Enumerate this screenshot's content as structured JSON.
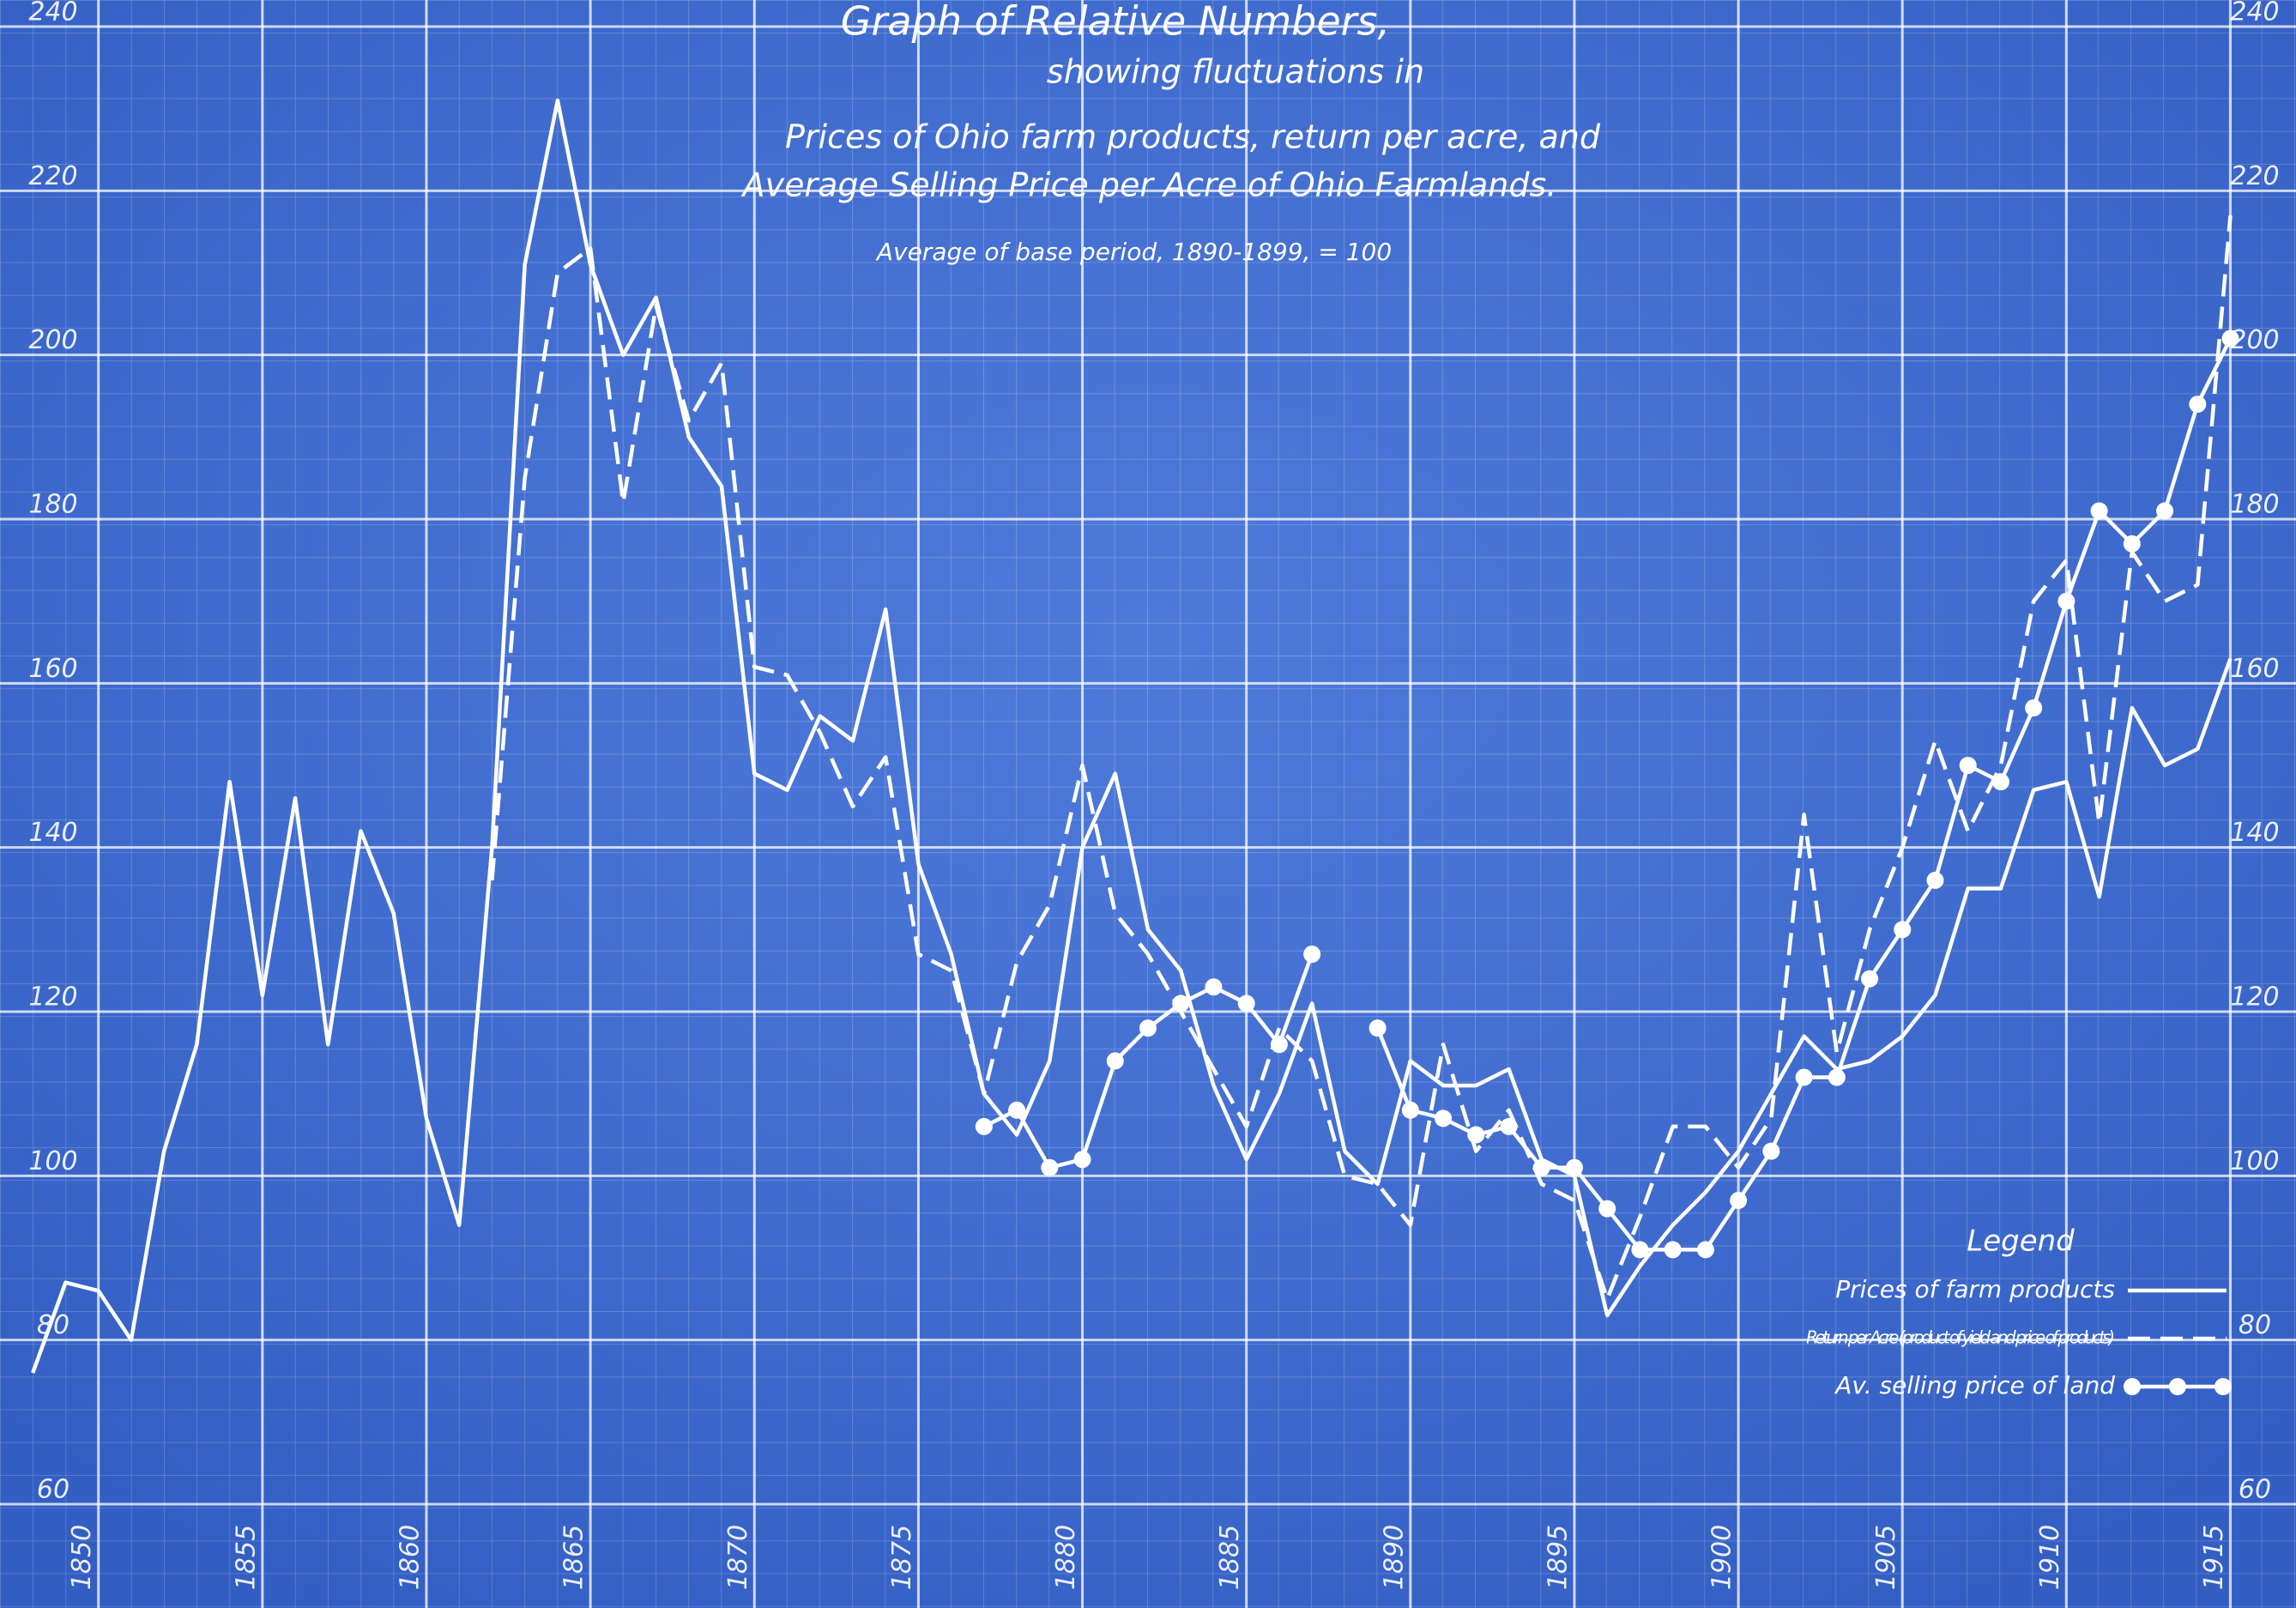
{
  "chart_data": {
    "type": "line",
    "title": "Graph of Relative Numbers,",
    "subtitle": [
      "showing fluctuations in",
      "Prices of Ohio farm products, return per acre, and",
      "Average Selling Price per Acre of Ohio Farmlands."
    ],
    "note": "Average of base period, 1890-1899, = 100",
    "legend_title": "Legend",
    "legend": "lower right",
    "grid": true,
    "background": "#3a6bd6",
    "x": [
      1848,
      1849,
      1850,
      1851,
      1852,
      1853,
      1854,
      1855,
      1856,
      1857,
      1858,
      1859,
      1860,
      1861,
      1862,
      1863,
      1864,
      1865,
      1866,
      1867,
      1868,
      1869,
      1870,
      1871,
      1872,
      1873,
      1874,
      1875,
      1876,
      1877,
      1878,
      1879,
      1880,
      1881,
      1882,
      1883,
      1884,
      1885,
      1886,
      1887,
      1888,
      1889,
      1890,
      1891,
      1892,
      1893,
      1894,
      1895,
      1896,
      1897,
      1898,
      1899,
      1900,
      1901,
      1902,
      1903,
      1904,
      1905,
      1906,
      1907,
      1908,
      1909,
      1910,
      1911,
      1912,
      1913,
      1914,
      1915
    ],
    "xlim": [
      1847,
      1917
    ],
    "xticks": [
      1850,
      1855,
      1860,
      1865,
      1870,
      1875,
      1880,
      1885,
      1890,
      1895,
      1900,
      1905,
      1910,
      1915
    ],
    "ylim": [
      60,
      240
    ],
    "yticks": [
      60,
      80,
      100,
      120,
      140,
      160,
      180,
      200,
      220,
      240
    ],
    "series": [
      {
        "name": "Prices of farm products",
        "color": "#ffffff",
        "line_style": "solid",
        "marker": false,
        "values": [
          76,
          87,
          86,
          80,
          103,
          116,
          148,
          122,
          146,
          116,
          142,
          132,
          107,
          94,
          140,
          211,
          231,
          211,
          200,
          207,
          190,
          184,
          149,
          147,
          156,
          153,
          169,
          138,
          127,
          110,
          105,
          114,
          140,
          149,
          130,
          125,
          111,
          102,
          110,
          121,
          103,
          99,
          114,
          111,
          111,
          113,
          102,
          100,
          83,
          89,
          94,
          98,
          103,
          110,
          117,
          113,
          114,
          117,
          122,
          135,
          135,
          147,
          148,
          134,
          157,
          150,
          152,
          163
        ]
      },
      {
        "name": "Return per Acre (product of yield and price of products)",
        "color": "#ffffff",
        "line_style": "dashed",
        "marker": false,
        "values": [
          null,
          null,
          null,
          null,
          null,
          null,
          null,
          null,
          null,
          null,
          null,
          null,
          null,
          null,
          136,
          185,
          210,
          213,
          182,
          206,
          192,
          199,
          162,
          161,
          154,
          145,
          151,
          127,
          125,
          110,
          126,
          133,
          150,
          132,
          127,
          120,
          113,
          106,
          118,
          114,
          100,
          99,
          94,
          116,
          103,
          108,
          99,
          97,
          85,
          95,
          106,
          106,
          101,
          107,
          144,
          115,
          130,
          140,
          153,
          142,
          150,
          170,
          175,
          143,
          176,
          170,
          172,
          217
        ]
      },
      {
        "name": "Av. selling price of land",
        "color": "#ffffff",
        "line_style": "solid",
        "marker": true,
        "values": [
          null,
          null,
          null,
          null,
          null,
          null,
          null,
          null,
          null,
          null,
          null,
          null,
          null,
          null,
          null,
          null,
          null,
          null,
          null,
          null,
          null,
          null,
          null,
          null,
          null,
          null,
          null,
          null,
          null,
          106,
          108,
          101,
          102,
          114,
          118,
          121,
          123,
          121,
          116,
          127,
          null,
          118,
          108,
          107,
          105,
          106,
          101,
          101,
          96,
          91,
          91,
          91,
          97,
          103,
          112,
          112,
          124,
          130,
          136,
          150,
          148,
          157,
          170,
          181,
          177,
          181,
          194,
          202
        ]
      }
    ]
  }
}
